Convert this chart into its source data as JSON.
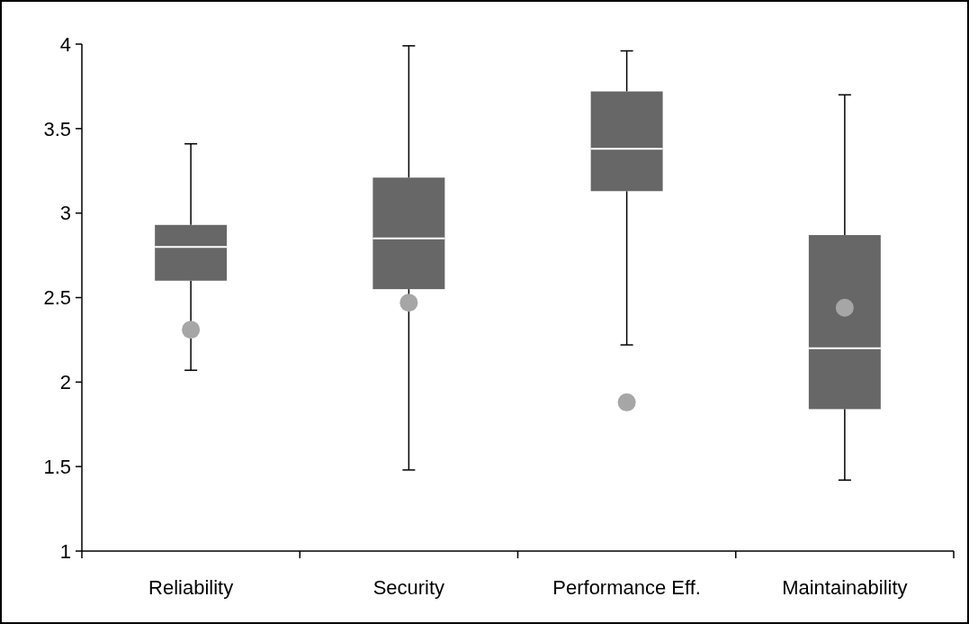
{
  "chart_data": {
    "type": "box",
    "categories": [
      "Reliability",
      "Security",
      "Performance Eff.",
      "Maintainability"
    ],
    "ylim": [
      1,
      4
    ],
    "yticks": [
      1,
      1.5,
      2,
      2.5,
      3,
      3.5,
      4
    ],
    "grid": false,
    "series": [
      {
        "type": "box",
        "color": "#676767",
        "boxes": [
          {
            "low": 2.07,
            "q1": 2.6,
            "median": 2.8,
            "q3": 2.93,
            "high": 3.41
          },
          {
            "low": 1.48,
            "q1": 2.55,
            "median": 2.85,
            "q3": 3.21,
            "high": 3.99
          },
          {
            "low": 2.22,
            "q1": 3.13,
            "median": 3.38,
            "q3": 3.72,
            "high": 3.96
          },
          {
            "low": 1.42,
            "q1": 1.84,
            "median": 2.2,
            "q3": 2.87,
            "high": 3.7
          }
        ]
      },
      {
        "type": "scatter",
        "color": "#a6a6a6",
        "marker": "circle",
        "x": [
          "Reliability",
          "Security",
          "Performance Eff.",
          "Maintainability"
        ],
        "values": [
          2.31,
          2.47,
          1.88,
          2.44
        ]
      }
    ]
  }
}
